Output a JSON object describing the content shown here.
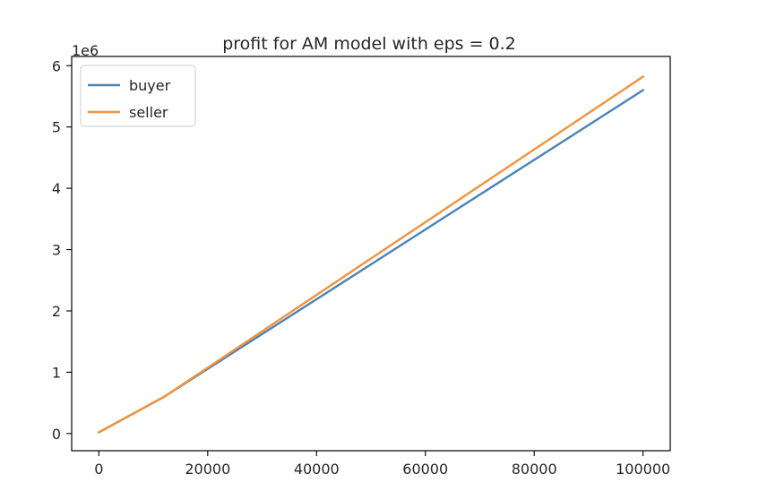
{
  "chart_data": {
    "type": "line",
    "title": "profit for AM model with eps = 0.2",
    "xlabel": "",
    "ylabel": "",
    "y_offset_label": "1e6",
    "y_scale": 1000000,
    "xlim": [
      -5000,
      105000
    ],
    "ylim": [
      -0.28,
      6.15
    ],
    "x_ticks": [
      0,
      20000,
      40000,
      60000,
      80000,
      100000
    ],
    "x_tick_labels": [
      "0",
      "20000",
      "40000",
      "60000",
      "80000",
      "100000"
    ],
    "y_ticks": [
      0,
      1,
      2,
      3,
      4,
      5,
      6
    ],
    "y_tick_labels": [
      "0",
      "1",
      "2",
      "3",
      "4",
      "5",
      "6"
    ],
    "grid": false,
    "legend": "upper-left",
    "x": [
      0,
      12000,
      100000
    ],
    "series": [
      {
        "name": "buyer",
        "color": "#4c84b5",
        "values": [
          0.02,
          0.6,
          5.6
        ]
      },
      {
        "name": "seller",
        "color": "#f3923e",
        "values": [
          0.02,
          0.6,
          5.82
        ]
      }
    ]
  }
}
